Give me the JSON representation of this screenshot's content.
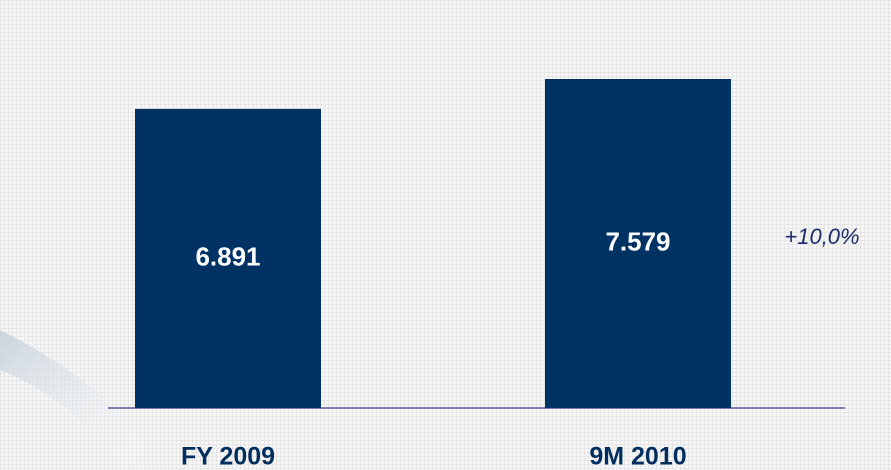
{
  "chart_data": {
    "type": "bar",
    "categories": [
      "FY 2009",
      "9M 2010"
    ],
    "values": [
      6891,
      7579
    ],
    "value_labels": [
      "6.891",
      "7.579"
    ],
    "color": "#003363",
    "annotation": "+10,0%"
  }
}
